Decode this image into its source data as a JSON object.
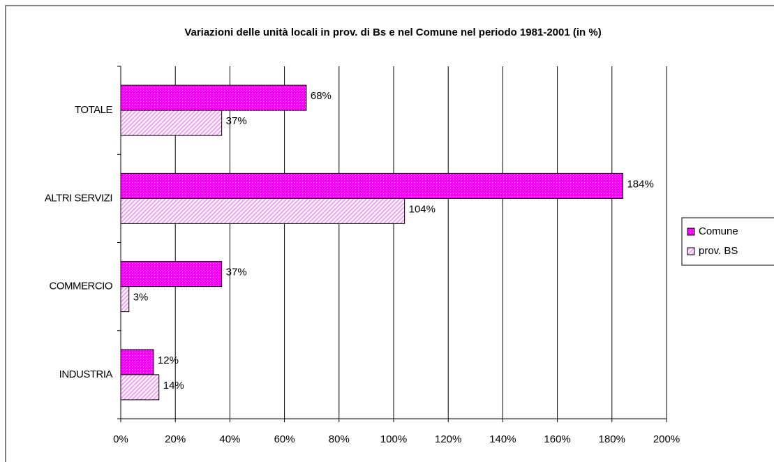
{
  "chart_data": {
    "type": "barh",
    "title": "Variazioni delle unità locali in prov. di Bs e nel Comune nel periodo 1981-2001 (in %)",
    "categories": [
      "TOTALE",
      "ALTRI SERVIZI",
      "COMMERCIO",
      "INDUSTRIA"
    ],
    "series": [
      {
        "name": "Comune",
        "color": "#ff00ff",
        "values": [
          68,
          184,
          37,
          12
        ],
        "value_labels": [
          "68%",
          "184%",
          "37%",
          "12%"
        ]
      },
      {
        "name": "prov. BS",
        "color": "#ff99ff",
        "values": [
          37,
          104,
          3,
          14
        ],
        "value_labels": [
          "37%",
          "104%",
          "3%",
          "14%"
        ]
      }
    ],
    "xlim": [
      0,
      200
    ],
    "xticks": [
      {
        "value": 0,
        "label": "0%"
      },
      {
        "value": 20,
        "label": "20%"
      },
      {
        "value": 40,
        "label": "40%"
      },
      {
        "value": 60,
        "label": "60%"
      },
      {
        "value": 80,
        "label": "80%"
      },
      {
        "value": 100,
        "label": "100%"
      },
      {
        "value": 120,
        "label": "120%"
      },
      {
        "value": 140,
        "label": "140%"
      },
      {
        "value": 160,
        "label": "160%"
      },
      {
        "value": 180,
        "label": "180%"
      },
      {
        "value": 200,
        "label": "200%"
      }
    ],
    "grid": true,
    "legend": "right"
  }
}
